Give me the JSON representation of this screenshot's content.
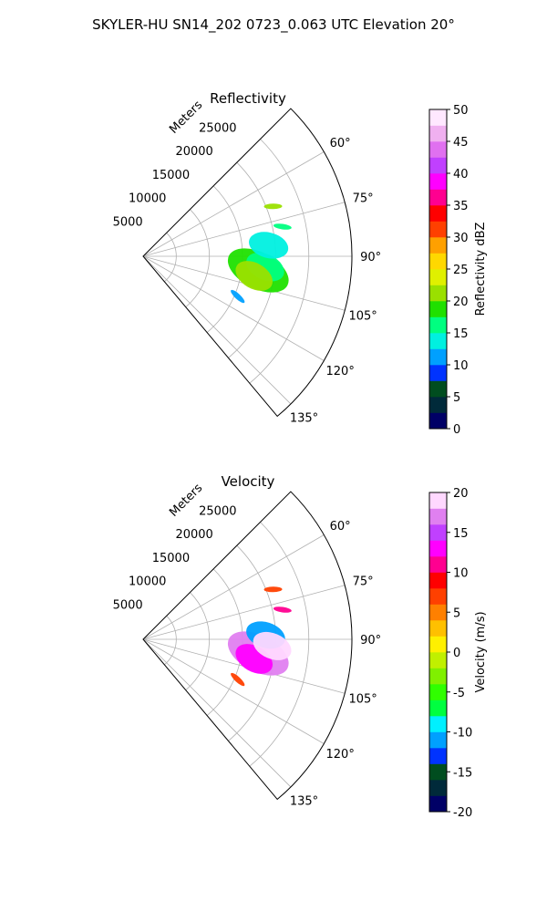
{
  "suptitle": "SKYLER-HU  SN14_202  0723_0.063 UTC Elevation 20°",
  "colors": {
    "grid": "#b0b0b0",
    "axis": "#000000",
    "background": "#ffffff"
  },
  "chart_data": [
    {
      "type": "polar_sector",
      "title": "Reflectivity",
      "range_label": "Meters",
      "r_ticks": [
        "5000",
        "10000",
        "15000",
        "20000",
        "25000"
      ],
      "r_values": [
        5000,
        10000,
        15000,
        20000,
        25000
      ],
      "rlim": [
        0,
        31500
      ],
      "theta_ticks": [
        "60°",
        "75°",
        "90°",
        "105°",
        "120°",
        "135°"
      ],
      "theta_values": [
        60,
        75,
        90,
        105,
        120,
        135
      ],
      "theta_range": [
        45,
        140
      ],
      "colorbar": {
        "label": "Reflectivity dBZ",
        "ticks": [
          "0",
          "5",
          "10",
          "15",
          "20",
          "25",
          "30",
          "35",
          "40",
          "45",
          "50"
        ],
        "range": [
          0,
          50
        ]
      },
      "echoes": [
        {
          "azimuth": 97,
          "range_m": 17500,
          "value": 18
        },
        {
          "azimuth": 95,
          "range_m": 18500,
          "value": 15
        },
        {
          "azimuth": 100,
          "range_m": 17000,
          "value": 20
        },
        {
          "azimuth": 85,
          "range_m": 19000,
          "value": 13
        },
        {
          "azimuth": 78,
          "range_m": 21500,
          "value": 17
        },
        {
          "azimuth": 69,
          "range_m": 21000,
          "value": 21
        },
        {
          "azimuth": 113,
          "range_m": 15500,
          "value": 12
        }
      ]
    },
    {
      "type": "polar_sector",
      "title": "Velocity",
      "range_label": "Meters",
      "r_ticks": [
        "5000",
        "10000",
        "15000",
        "20000",
        "25000"
      ],
      "r_values": [
        5000,
        10000,
        15000,
        20000,
        25000
      ],
      "rlim": [
        0,
        31500
      ],
      "theta_ticks": [
        "60°",
        "75°",
        "90°",
        "105°",
        "120°",
        "135°"
      ],
      "theta_values": [
        60,
        75,
        90,
        105,
        120,
        135
      ],
      "theta_range": [
        45,
        140
      ],
      "colorbar": {
        "label": "Velocity (m/s)",
        "ticks": [
          "-20",
          "-15",
          "-10",
          "-5",
          "0",
          "5",
          "10",
          "15",
          "20"
        ],
        "range": [
          -20,
          20
        ]
      },
      "echoes": [
        {
          "azimuth": 97,
          "range_m": 17500,
          "value": 16
        },
        {
          "azimuth": 100,
          "range_m": 17000,
          "value": 12
        },
        {
          "azimuth": 88,
          "range_m": 18500,
          "value": -11
        },
        {
          "azimuth": 93,
          "range_m": 19500,
          "value": 18
        },
        {
          "azimuth": 78,
          "range_m": 21500,
          "value": 11
        },
        {
          "azimuth": 69,
          "range_m": 21000,
          "value": 7
        },
        {
          "azimuth": 113,
          "range_m": 15500,
          "value": 6
        }
      ]
    }
  ]
}
